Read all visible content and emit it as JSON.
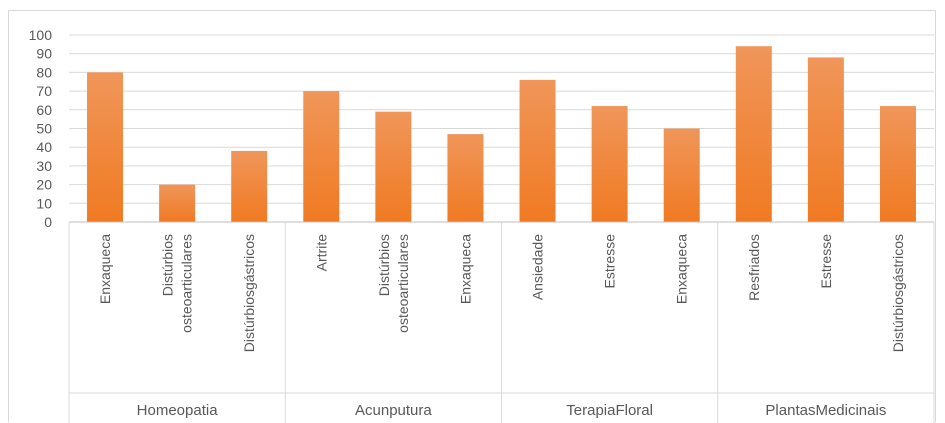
{
  "chart_data": {
    "type": "bar",
    "title": "",
    "xlabel": "",
    "ylabel": "",
    "ylim": [
      0,
      100
    ],
    "yticks": [
      0,
      10,
      20,
      30,
      40,
      50,
      60,
      70,
      80,
      90,
      100
    ],
    "grid": true,
    "legend": "none",
    "bar_color": "#f07d2e",
    "groups": [
      {
        "name": "Homeopatia",
        "categories": [
          [
            "Enxaqueca"
          ],
          [
            "Distúrbios",
            "osteoarticulares"
          ],
          [
            "Distúrbiosgástricos"
          ]
        ],
        "values": [
          80,
          20,
          38
        ]
      },
      {
        "name": "Acunputura",
        "categories": [
          [
            "Artrite"
          ],
          [
            "Distúrbios",
            "osteoarticulares"
          ],
          [
            "Enxaqueca"
          ]
        ],
        "values": [
          70,
          59,
          47
        ]
      },
      {
        "name": "TerapiaFloral",
        "categories": [
          [
            "Ansiedade"
          ],
          [
            "Estresse"
          ],
          [
            "Enxaqueca"
          ]
        ],
        "values": [
          76,
          62,
          50
        ]
      },
      {
        "name": "PlantasMedicinais",
        "categories": [
          [
            "Resfriados"
          ],
          [
            "Estresse"
          ],
          [
            "Distúrbiosgástricos"
          ]
        ],
        "values": [
          94,
          88,
          62
        ]
      }
    ]
  }
}
